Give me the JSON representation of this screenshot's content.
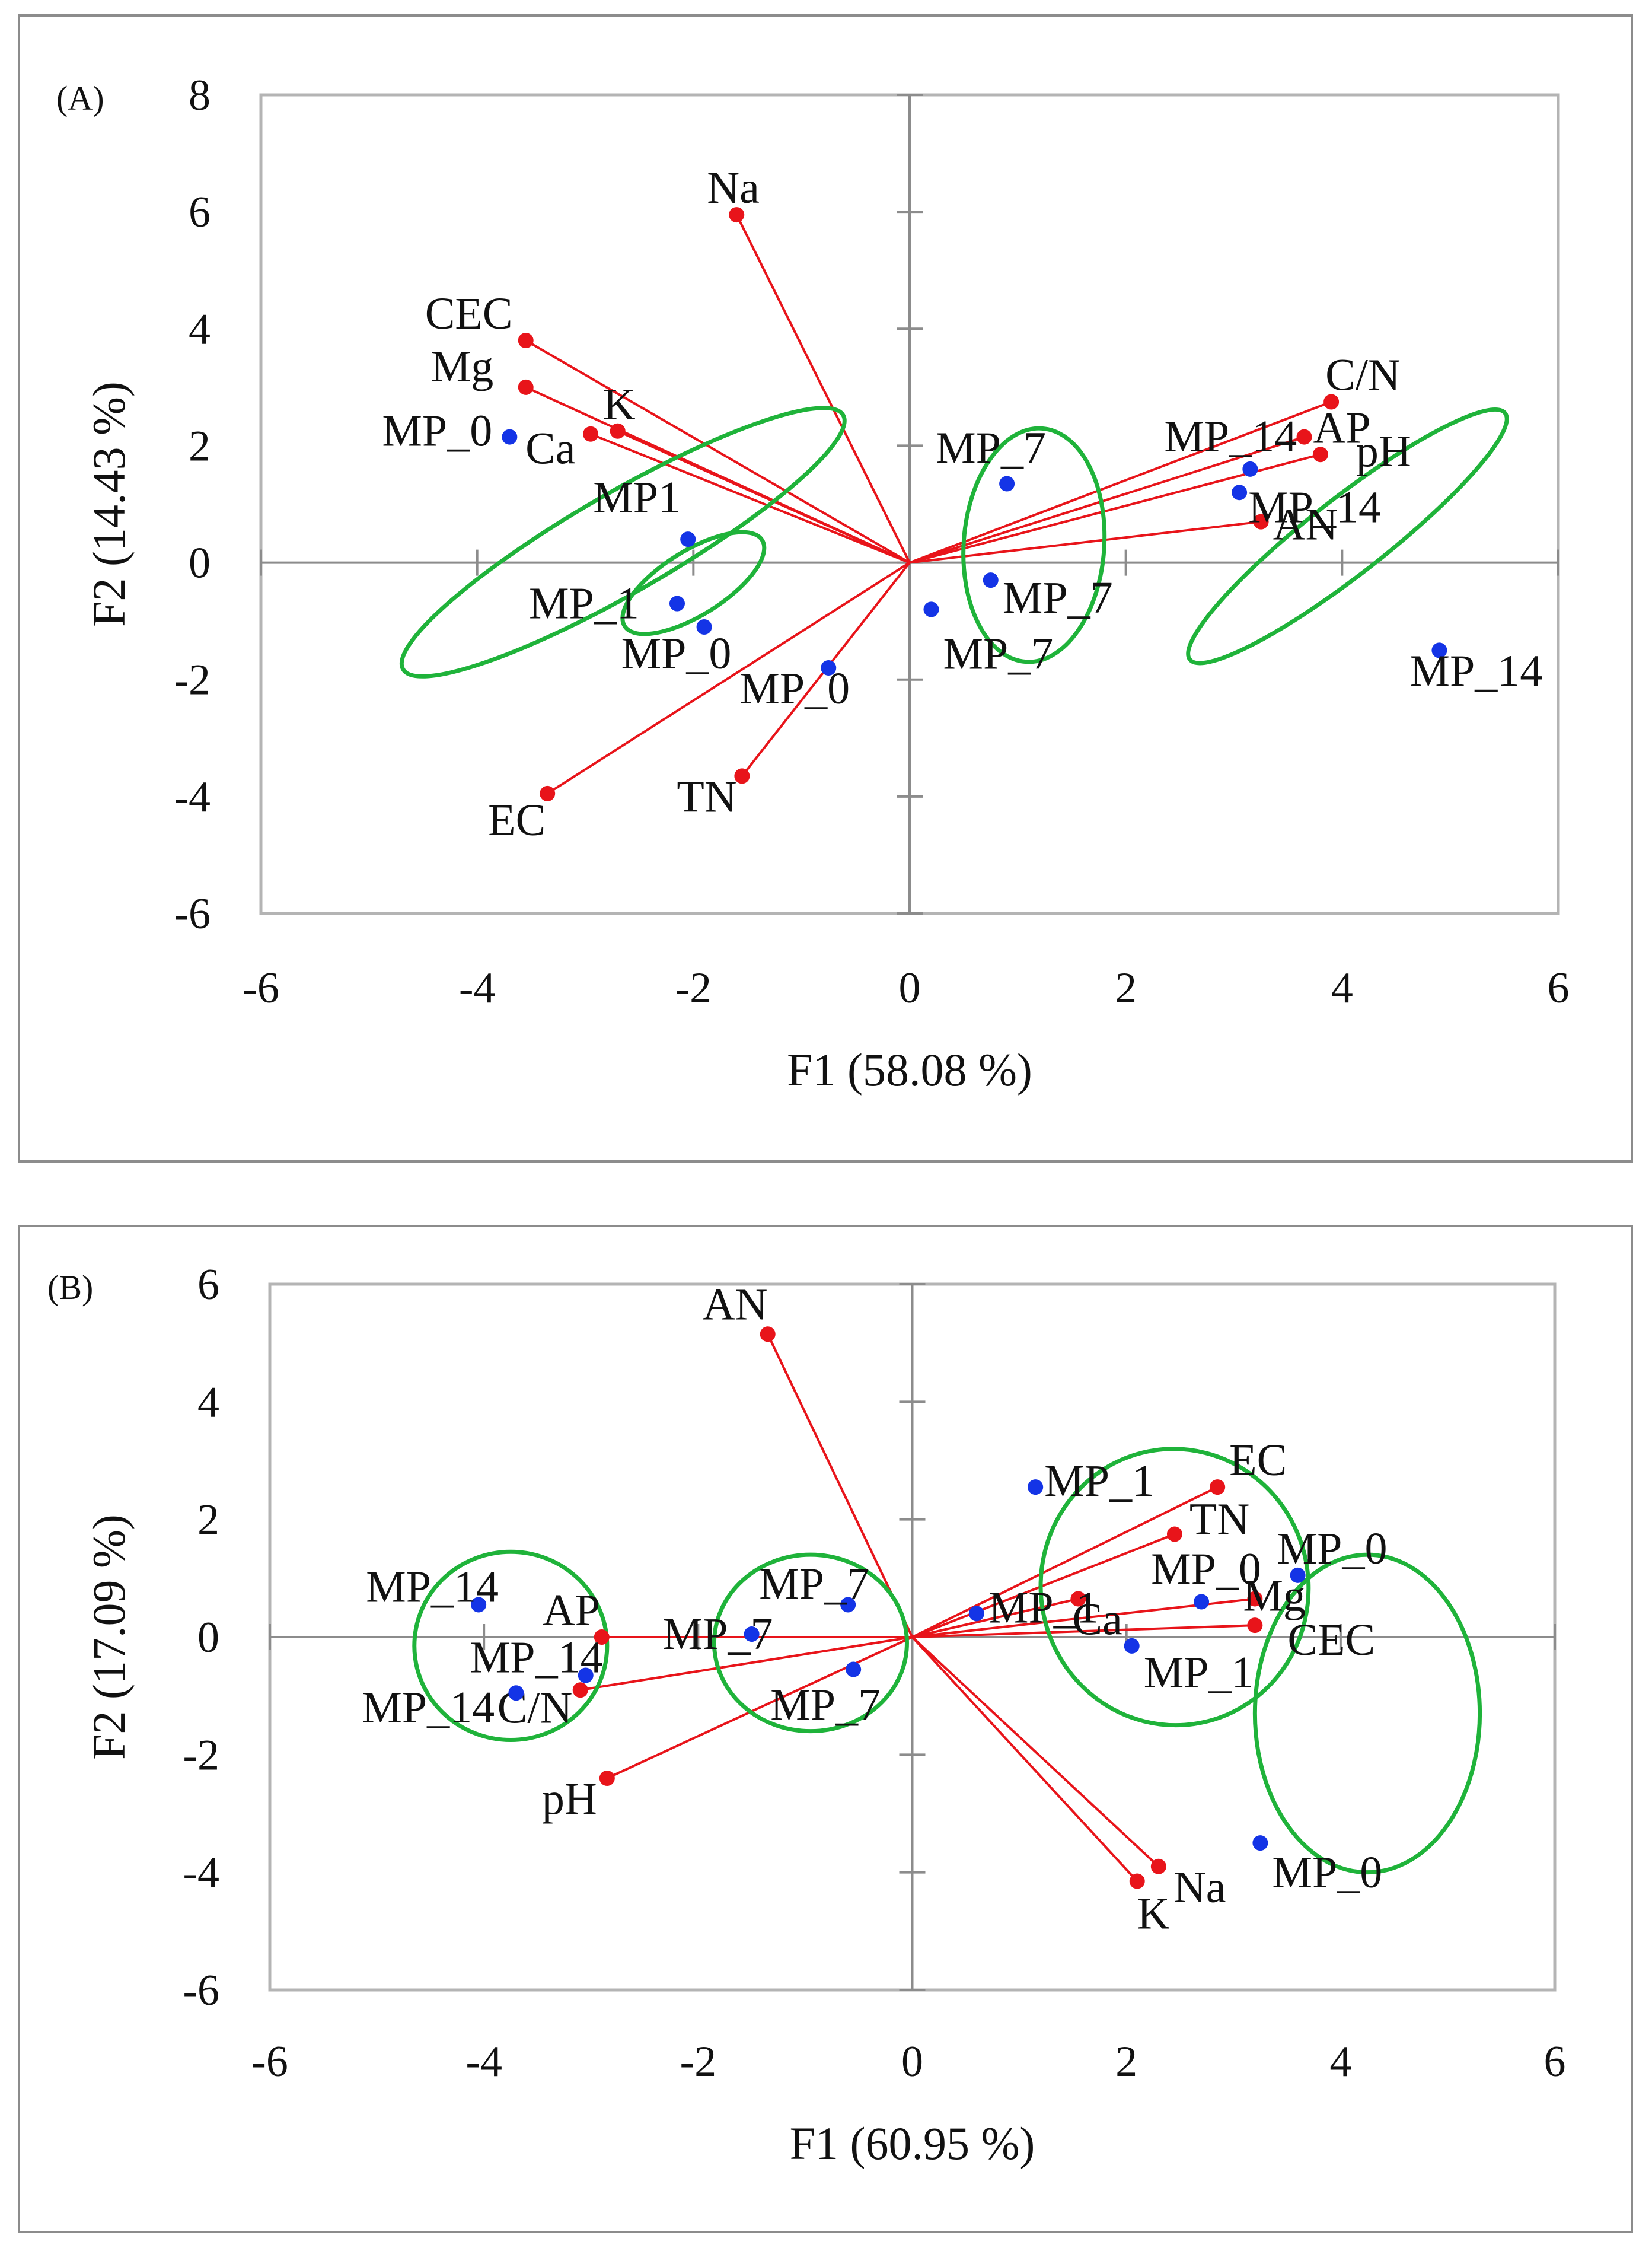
{
  "colors": {
    "frame": "#8c8c8c",
    "plot_border": "#b4b4b4",
    "axis": "#8c8c8c",
    "loading": "#e8141a",
    "observation": "#1434e6",
    "ellipse": "#1fb33a"
  },
  "chart_data": [
    {
      "type": "scatter",
      "subtype": "PCA biplot",
      "panel": "(A)",
      "xlabel": "F1 (58.08 %)",
      "ylabel": "F2 (14.43 %)",
      "xlim": [
        -6,
        6
      ],
      "ylim": [
        -6,
        8
      ],
      "xticks": [
        -6,
        -4,
        -2,
        0,
        2,
        4,
        6
      ],
      "yticks": [
        -6,
        -4,
        -2,
        0,
        2,
        4,
        6,
        8
      ],
      "grid": false,
      "series": [
        {
          "name": "Variables",
          "color": "#e8141a",
          "vectors_from_origin": true,
          "points": [
            {
              "label": "Na",
              "x": -1.6,
              "y": 5.95
            },
            {
              "label": "CEC",
              "x": -3.55,
              "y": 3.8
            },
            {
              "label": "Mg",
              "x": -3.55,
              "y": 3.0
            },
            {
              "label": "K",
              "x": -2.7,
              "y": 2.25
            },
            {
              "label": "Ca",
              "x": -2.95,
              "y": 2.2
            },
            {
              "label": "EC",
              "x": -3.35,
              "y": -3.95
            },
            {
              "label": "TN",
              "x": -1.55,
              "y": -3.65
            },
            {
              "label": "C/N",
              "x": 3.9,
              "y": 2.75
            },
            {
              "label": "AP",
              "x": 3.65,
              "y": 2.15
            },
            {
              "label": "pH",
              "x": 3.8,
              "y": 1.85
            },
            {
              "label": "AN",
              "x": 3.25,
              "y": 0.7
            }
          ]
        },
        {
          "name": "Observations",
          "color": "#1434e6",
          "points": [
            {
              "label": "MP_0",
              "x": -3.7,
              "y": 2.15
            },
            {
              "label": "MP1",
              "x": -2.05,
              "y": 0.4
            },
            {
              "label": "MP_1",
              "x": -2.15,
              "y": -0.7
            },
            {
              "label": "MP_0",
              "x": -1.9,
              "y": -1.1
            },
            {
              "label": "MP_0",
              "x": -0.75,
              "y": -1.8
            },
            {
              "label": "MP_7",
              "x": 0.9,
              "y": 1.35
            },
            {
              "label": "MP_7",
              "x": 0.75,
              "y": -0.3
            },
            {
              "label": "MP_7",
              "x": 0.2,
              "y": -0.8
            },
            {
              "label": "MP_14",
              "x": 3.15,
              "y": 1.6
            },
            {
              "label": "MP_14",
              "x": 3.05,
              "y": 1.2
            },
            {
              "label": "MP_14",
              "x": 4.9,
              "y": -1.5
            }
          ]
        }
      ]
    },
    {
      "type": "scatter",
      "subtype": "PCA biplot",
      "panel": "(B)",
      "xlabel": "F1 (60.95 %)",
      "ylabel": "F2 (17.09 %)",
      "xlim": [
        -6,
        6
      ],
      "ylim": [
        -6,
        6
      ],
      "xticks": [
        -6,
        -4,
        -2,
        0,
        2,
        4,
        6
      ],
      "yticks": [
        -6,
        -4,
        -2,
        0,
        2,
        4,
        6
      ],
      "grid": false,
      "series": [
        {
          "name": "Variables",
          "color": "#e8141a",
          "vectors_from_origin": true,
          "points": [
            {
              "label": "AN",
              "x": -1.35,
              "y": 5.15
            },
            {
              "label": "EC",
              "x": 2.85,
              "y": 2.55
            },
            {
              "label": "TN",
              "x": 2.45,
              "y": 1.75
            },
            {
              "label": "Ca",
              "x": 1.55,
              "y": 0.65
            },
            {
              "label": "Mg",
              "x": 3.2,
              "y": 0.65
            },
            {
              "label": "CEC",
              "x": 3.2,
              "y": 0.2
            },
            {
              "label": "Na",
              "x": 2.3,
              "y": -3.9
            },
            {
              "label": "K",
              "x": 2.1,
              "y": -4.15
            },
            {
              "label": "AP",
              "x": -2.9,
              "y": 0.0
            },
            {
              "label": "C/N",
              "x": -3.1,
              "y": -0.9
            },
            {
              "label": "pH",
              "x": -2.85,
              "y": -2.4
            }
          ]
        },
        {
          "name": "Observations",
          "color": "#1434e6",
          "points": [
            {
              "label": "MP_1",
              "x": 1.15,
              "y": 2.55
            },
            {
              "label": "MP_0",
              "x": 3.6,
              "y": 1.05
            },
            {
              "label": "MP_0",
              "x": 2.7,
              "y": 0.6
            },
            {
              "label": "MP_1",
              "x": 0.6,
              "y": 0.4
            },
            {
              "label": "MP_1",
              "x": 2.05,
              "y": -0.15
            },
            {
              "label": "MP_0",
              "x": 3.25,
              "y": -3.5
            },
            {
              "label": "MP_7",
              "x": -0.6,
              "y": 0.55
            },
            {
              "label": "MP_7",
              "x": -1.5,
              "y": 0.05
            },
            {
              "label": "MP_7",
              "x": -0.55,
              "y": -0.55
            },
            {
              "label": "MP_14",
              "x": -4.05,
              "y": 0.55
            },
            {
              "label": "MP_14",
              "x": -3.05,
              "y": -0.65
            },
            {
              "label": "MP_14",
              "x": -3.7,
              "y": -0.95
            }
          ]
        }
      ]
    }
  ]
}
